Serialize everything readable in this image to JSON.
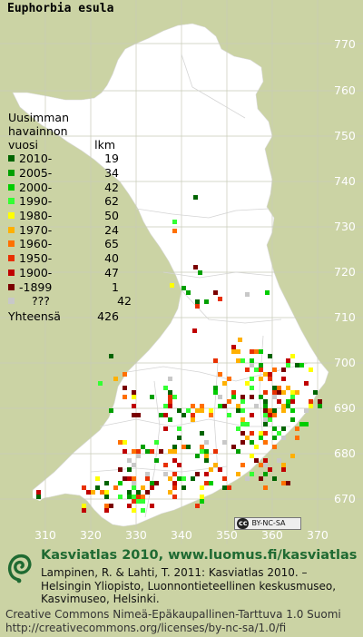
{
  "species": "Euphorbia esula",
  "legend": {
    "head_line1": "Uusimman",
    "head_line2": "havainnon",
    "head_col1": "vuosi",
    "head_col2": "lkm",
    "rows": [
      {
        "period": "2010-",
        "count": "19",
        "color": "#006400"
      },
      {
        "period": "2005-",
        "count": "34",
        "color": "#00a000"
      },
      {
        "period": "2000-",
        "count": "42",
        "color": "#00cc00"
      },
      {
        "period": "1990-",
        "count": "62",
        "color": "#33ff33"
      },
      {
        "period": "1980-",
        "count": "50",
        "color": "#ffff00"
      },
      {
        "period": "1970-",
        "count": "24",
        "color": "#ffb000"
      },
      {
        "period": "1960-",
        "count": "65",
        "color": "#ff7000"
      },
      {
        "period": "1950-",
        "count": "40",
        "color": "#e83000"
      },
      {
        "period": "1900-",
        "count": "47",
        "color": "#c00000"
      },
      {
        "period": "-1899",
        "count": "1",
        "color": "#7a0000"
      },
      {
        "period": "???",
        "count": "42",
        "color": "#c8c8c8"
      }
    ],
    "total_label": "Yhteensä",
    "total_count": "426"
  },
  "map": {
    "y_axis_labels": [
      "770",
      "760",
      "750",
      "740",
      "730",
      "720",
      "710",
      "700",
      "690",
      "680",
      "670"
    ],
    "x_axis_labels": [
      "310",
      "320",
      "330",
      "340",
      "350",
      "360",
      "370"
    ],
    "land_color": "#ffffff",
    "sea_color": "#cbd3a4"
  },
  "license_badge": "BY-NC-SA",
  "footer": {
    "title": "Kasviatlas 2010, www.luomus.fi/kasviatlas",
    "citation": "Lampinen, R. & Lahti, T. 2011: Kasviatlas 2010. – Helsingin Yliopisto, Luonnontieteellinen keskusmuseo, Kasvimuseo, Helsinki.",
    "license_line1": "Creative Commons Nimeä-Epäkaupallinen-Tarttuva 1.0 Suomi",
    "license_line2": "http://creativecommons.org/licenses/by-nc-sa/1.0/fi"
  }
}
